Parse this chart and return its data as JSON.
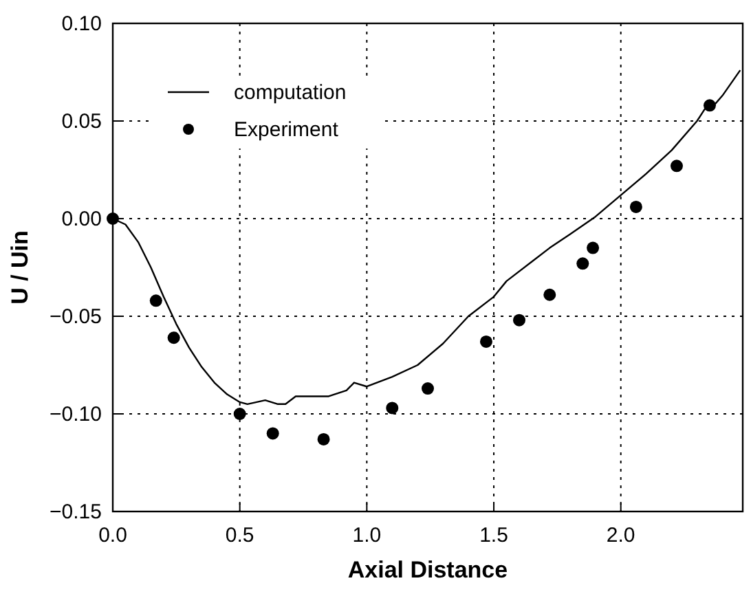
{
  "chart_data": {
    "type": "line",
    "xlabel": "Axial Distance",
    "ylabel": "U / Uin",
    "xlim": [
      0,
      2.48
    ],
    "ylim": [
      -0.15,
      0.1
    ],
    "xticks": [
      {
        "value": 0,
        "label": "0.0"
      },
      {
        "value": 0.5,
        "label": "0.5"
      },
      {
        "value": 1,
        "label": "1.0"
      },
      {
        "value": 1.5,
        "label": "1.5"
      },
      {
        "value": 2,
        "label": "2.0"
      }
    ],
    "yticks": [
      {
        "value": -0.15,
        "label": "−0.15"
      },
      {
        "value": -0.1,
        "label": "−0.10"
      },
      {
        "value": -0.05,
        "label": "−0.05"
      },
      {
        "value": 0,
        "label": "0.00"
      },
      {
        "value": 0.05,
        "label": "0.05"
      },
      {
        "value": 0.1,
        "label": "0.10"
      }
    ],
    "grid": true,
    "legend": "top left",
    "series": [
      {
        "name": "computation",
        "color": "#000000",
        "marker": "none",
        "line_style": "solid",
        "x": [
          0,
          0.05,
          0.1,
          0.15,
          0.2,
          0.25,
          0.3,
          0.35,
          0.4,
          0.45,
          0.5,
          0.53,
          0.6,
          0.65,
          0.68,
          0.72,
          0.8,
          0.85,
          0.92,
          0.95,
          1.0,
          1.1,
          1.2,
          1.3,
          1.4,
          1.5,
          1.55,
          1.65,
          1.72,
          1.8,
          1.9,
          2.0,
          2.1,
          2.2,
          2.3,
          2.33,
          2.36,
          2.4,
          2.47
        ],
        "values": [
          0,
          -0.003,
          -0.012,
          -0.025,
          -0.04,
          -0.054,
          -0.066,
          -0.076,
          -0.084,
          -0.09,
          -0.094,
          -0.095,
          -0.093,
          -0.095,
          -0.095,
          -0.091,
          -0.091,
          -0.091,
          -0.088,
          -0.084,
          -0.086,
          -0.081,
          -0.075,
          -0.064,
          -0.05,
          -0.04,
          -0.032,
          -0.022,
          -0.015,
          -0.008,
          0.001,
          0.012,
          0.023,
          0.035,
          0.05,
          0.056,
          0.057,
          0.063,
          0.076
        ]
      },
      {
        "name": "Experiment",
        "type": "scatter",
        "color": "#000000",
        "marker": "circle",
        "x": [
          0,
          0.17,
          0.24,
          0.5,
          0.63,
          0.83,
          1.1,
          1.24,
          1.47,
          1.6,
          1.72,
          1.85,
          1.89,
          2.06,
          2.22,
          2.35
        ],
        "values": [
          0,
          -0.042,
          -0.061,
          -0.1,
          -0.11,
          -0.113,
          -0.097,
          -0.087,
          -0.063,
          -0.052,
          -0.039,
          -0.023,
          -0.015,
          0.006,
          0.027,
          0.058
        ]
      }
    ]
  }
}
